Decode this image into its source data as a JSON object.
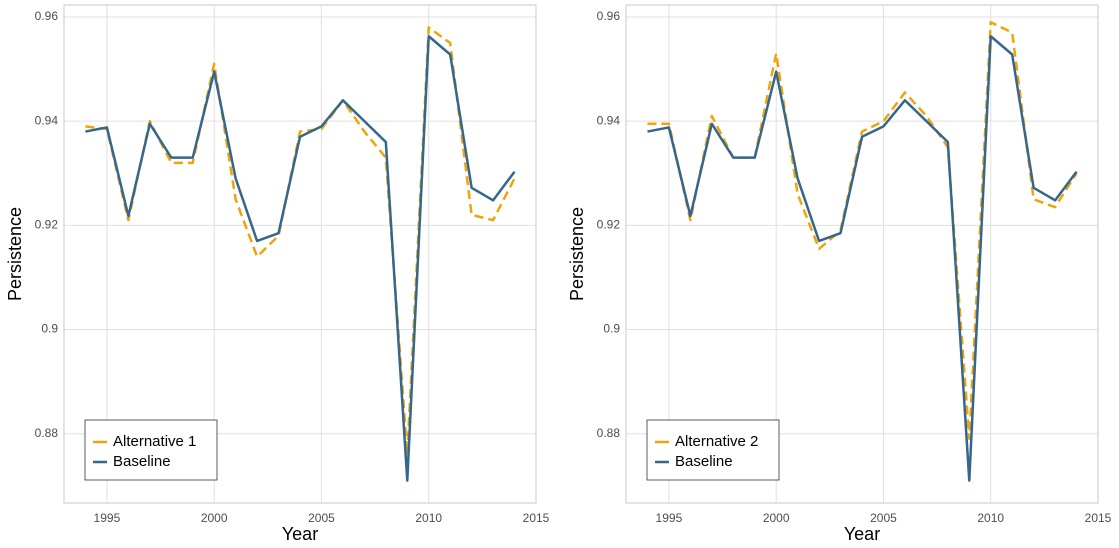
{
  "chart_data": [
    {
      "type": "line",
      "xlabel": "Year",
      "ylabel": "Persistence",
      "x": [
        1994,
        1995,
        1996,
        1997,
        1998,
        1999,
        2000,
        2001,
        2002,
        2003,
        2004,
        2005,
        2006,
        2007,
        2008,
        2009,
        2010,
        2011,
        2012,
        2013,
        2014
      ],
      "xlim": [
        1993,
        2015
      ],
      "xticks": [
        1995,
        2000,
        2005,
        2010,
        2015
      ],
      "ylim": [
        0.8667,
        0.9623
      ],
      "yticks": [
        0.88,
        0.9,
        0.92,
        0.94,
        0.96
      ],
      "grid": true,
      "legend_position": "bottom-left",
      "series": [
        {
          "name": "Alternative 1",
          "color": "#F0A30A",
          "linestyle": "dashed",
          "values": [
            0.939,
            0.9385,
            0.921,
            0.94,
            0.932,
            0.932,
            0.951,
            0.925,
            0.914,
            0.918,
            0.938,
            0.9385,
            0.944,
            0.938,
            0.933,
            0.876,
            0.958,
            0.955,
            0.922,
            0.921,
            0.929
          ]
        },
        {
          "name": "Baseline",
          "color": "#35678C",
          "linestyle": "solid",
          "values": [
            0.938,
            0.9388,
            0.9218,
            0.9395,
            0.933,
            0.933,
            0.9495,
            0.929,
            0.917,
            0.9185,
            0.937,
            0.939,
            0.944,
            0.94,
            0.936,
            0.871,
            0.9563,
            0.9528,
            0.9272,
            0.9248,
            0.9303
          ]
        }
      ]
    },
    {
      "type": "line",
      "xlabel": "Year",
      "ylabel": "Persistence",
      "x": [
        1994,
        1995,
        1996,
        1997,
        1998,
        1999,
        2000,
        2001,
        2002,
        2003,
        2004,
        2005,
        2006,
        2007,
        2008,
        2009,
        2010,
        2011,
        2012,
        2013,
        2014
      ],
      "xlim": [
        1993,
        2015
      ],
      "xticks": [
        1995,
        2000,
        2005,
        2010,
        2015
      ],
      "ylim": [
        0.8667,
        0.9623
      ],
      "yticks": [
        0.88,
        0.9,
        0.92,
        0.94,
        0.96
      ],
      "grid": true,
      "legend_position": "bottom-left",
      "series": [
        {
          "name": "Alternative 2",
          "color": "#F0A30A",
          "linestyle": "dashed",
          "values": [
            0.9395,
            0.9395,
            0.921,
            0.941,
            0.933,
            0.933,
            0.953,
            0.926,
            0.9155,
            0.919,
            0.938,
            0.94,
            0.9455,
            0.941,
            0.935,
            0.879,
            0.959,
            0.957,
            0.925,
            0.9235,
            0.93
          ]
        },
        {
          "name": "Baseline",
          "color": "#35678C",
          "linestyle": "solid",
          "values": [
            0.938,
            0.9388,
            0.9218,
            0.9395,
            0.933,
            0.933,
            0.9495,
            0.929,
            0.917,
            0.9185,
            0.937,
            0.939,
            0.944,
            0.94,
            0.936,
            0.871,
            0.9563,
            0.9528,
            0.9272,
            0.9248,
            0.9303
          ]
        }
      ]
    }
  ]
}
